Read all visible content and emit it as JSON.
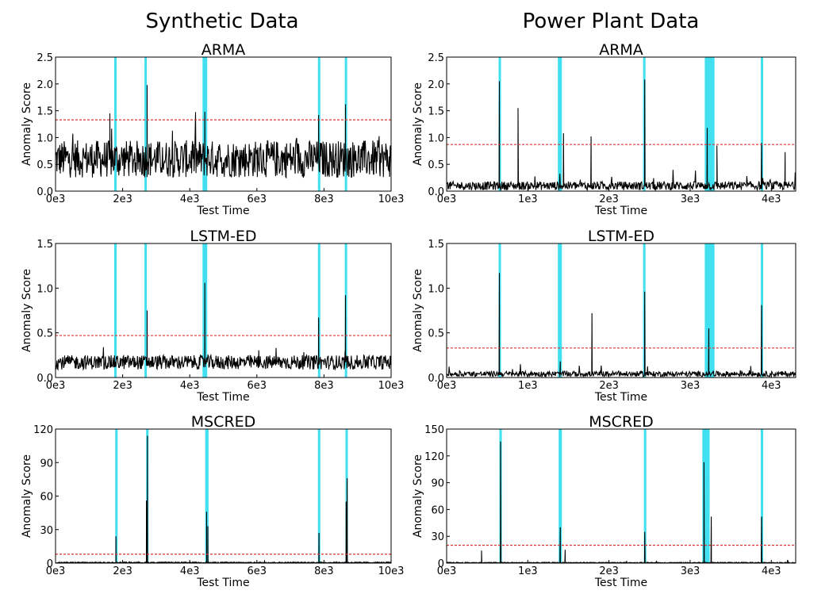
{
  "figure": {
    "column_titles": [
      "Synthetic Data",
      "Power Plant Data"
    ]
  },
  "chart_data": [
    {
      "type": "line",
      "column": "Synthetic Data",
      "title": "ARMA",
      "xlabel": "Test Time",
      "ylabel": "Anomaly Score",
      "xlim": [
        0,
        10000
      ],
      "ylim": [
        0,
        2.5
      ],
      "xticks": [
        0,
        2000,
        4000,
        6000,
        8000,
        10000
      ],
      "xtick_labels": [
        "0e3",
        "2e3",
        "4e3",
        "6e3",
        "8e3",
        "10e3"
      ],
      "yticks": [
        0,
        0.5,
        1.0,
        1.5,
        2.0,
        2.5
      ],
      "ytick_labels": [
        "0.0",
        "0.5",
        "1.0",
        "1.5",
        "2.0",
        "2.5"
      ],
      "threshold": 1.33,
      "anomaly_regions": [
        [
          1750,
          1800
        ],
        [
          2650,
          2720
        ],
        [
          4380,
          4520
        ],
        [
          7820,
          7870
        ],
        [
          8620,
          8680
        ]
      ],
      "noise": {
        "base": 0.6,
        "amp": 0.35,
        "spike_prob": 0.03,
        "spike_amp": 0.6
      },
      "peaks": [
        {
          "x": 2730,
          "y": 1.98
        },
        {
          "x": 4450,
          "y": 1.48
        },
        {
          "x": 7840,
          "y": 1.42
        },
        {
          "x": 8640,
          "y": 1.62
        },
        {
          "x": 1620,
          "y": 1.45
        }
      ],
      "highlight_color": "#40e0f0",
      "threshold_color": "#e03030",
      "line_color": "#000000"
    },
    {
      "type": "line",
      "column": "Power Plant Data",
      "title": "ARMA",
      "xlabel": "Test Time",
      "ylabel": "Anomaly Score",
      "xlim": [
        0,
        4300
      ],
      "ylim": [
        0,
        2.5
      ],
      "xticks": [
        0,
        1000,
        2000,
        3000,
        4000
      ],
      "xtick_labels": [
        "0e3",
        "1e3",
        "2e3",
        "3e3",
        "4e3"
      ],
      "yticks": [
        0,
        0.5,
        1.0,
        1.5,
        2.0,
        2.5
      ],
      "ytick_labels": [
        "0.0",
        "0.5",
        "1.0",
        "1.5",
        "2.0",
        "2.5"
      ],
      "threshold": 0.87,
      "anomaly_regions": [
        [
          640,
          670
        ],
        [
          1370,
          1420
        ],
        [
          2420,
          2450
        ],
        [
          3180,
          3300
        ],
        [
          3870,
          3890
        ]
      ],
      "noise": {
        "base": 0.1,
        "amp": 0.08,
        "spike_prob": 0.02,
        "spike_amp": 0.3
      },
      "peaks": [
        {
          "x": 650,
          "y": 2.05
        },
        {
          "x": 880,
          "y": 1.55
        },
        {
          "x": 1440,
          "y": 1.08
        },
        {
          "x": 1780,
          "y": 1.02
        },
        {
          "x": 2440,
          "y": 2.08
        },
        {
          "x": 3210,
          "y": 1.18
        },
        {
          "x": 3330,
          "y": 0.85
        },
        {
          "x": 3880,
          "y": 0.9
        },
        {
          "x": 4170,
          "y": 0.73
        }
      ],
      "highlight_color": "#40e0f0",
      "threshold_color": "#e03030",
      "line_color": "#000000"
    },
    {
      "type": "line",
      "column": "Synthetic Data",
      "title": "LSTM-ED",
      "xlabel": "Test Time",
      "ylabel": "Anomaly Score",
      "xlim": [
        0,
        10000
      ],
      "ylim": [
        0,
        1.5
      ],
      "xticks": [
        0,
        2000,
        4000,
        6000,
        8000,
        10000
      ],
      "xtick_labels": [
        "0e3",
        "2e3",
        "4e3",
        "6e3",
        "8e3",
        "10e3"
      ],
      "yticks": [
        0,
        0.5,
        1.0,
        1.5
      ],
      "ytick_labels": [
        "0.0",
        "0.5",
        "1.0",
        "1.5"
      ],
      "threshold": 0.47,
      "anomaly_regions": [
        [
          1750,
          1800
        ],
        [
          2650,
          2720
        ],
        [
          4380,
          4520
        ],
        [
          7820,
          7870
        ],
        [
          8620,
          8680
        ]
      ],
      "noise": {
        "base": 0.17,
        "amp": 0.08,
        "spike_prob": 0.02,
        "spike_amp": 0.15
      },
      "peaks": [
        {
          "x": 2730,
          "y": 0.75
        },
        {
          "x": 4450,
          "y": 1.06
        },
        {
          "x": 7840,
          "y": 0.67
        },
        {
          "x": 8640,
          "y": 0.92
        }
      ],
      "highlight_color": "#40e0f0",
      "threshold_color": "#e03030",
      "line_color": "#000000"
    },
    {
      "type": "line",
      "column": "Power Plant Data",
      "title": "LSTM-ED",
      "xlabel": "Test Time",
      "ylabel": "Anomaly Score",
      "xlim": [
        0,
        4300
      ],
      "ylim": [
        0,
        1.5
      ],
      "xticks": [
        0,
        1000,
        2000,
        3000,
        4000
      ],
      "xtick_labels": [
        "0e3",
        "1e3",
        "2e3",
        "3e3",
        "4e3"
      ],
      "yticks": [
        0,
        0.5,
        1.0,
        1.5
      ],
      "ytick_labels": [
        "0.0",
        "0.5",
        "1.0",
        "1.5"
      ],
      "threshold": 0.33,
      "anomaly_regions": [
        [
          640,
          670
        ],
        [
          1370,
          1420
        ],
        [
          2420,
          2450
        ],
        [
          3180,
          3300
        ],
        [
          3870,
          3890
        ]
      ],
      "noise": {
        "base": 0.04,
        "amp": 0.03,
        "spike_prob": 0.015,
        "spike_amp": 0.1
      },
      "peaks": [
        {
          "x": 650,
          "y": 1.17
        },
        {
          "x": 1400,
          "y": 0.18
        },
        {
          "x": 1790,
          "y": 0.72
        },
        {
          "x": 2440,
          "y": 0.96
        },
        {
          "x": 3230,
          "y": 0.55
        },
        {
          "x": 3880,
          "y": 0.81
        }
      ],
      "highlight_color": "#40e0f0",
      "threshold_color": "#e03030",
      "line_color": "#000000"
    },
    {
      "type": "line",
      "column": "Synthetic Data",
      "title": "MSCRED",
      "xlabel": "Test Time",
      "ylabel": "Anomaly Score",
      "xlim": [
        0,
        10000
      ],
      "ylim": [
        0,
        120
      ],
      "xticks": [
        0,
        2000,
        4000,
        6000,
        8000,
        10000
      ],
      "xtick_labels": [
        "0e3",
        "2e3",
        "4e3",
        "6e3",
        "8e3",
        "10e3"
      ],
      "yticks": [
        0,
        30,
        60,
        90,
        120
      ],
      "ytick_labels": [
        "0",
        "30",
        "60",
        "90",
        "120"
      ],
      "threshold": 8,
      "anomaly_regions": [
        [
          1780,
          1830
        ],
        [
          2700,
          2770
        ],
        [
          4460,
          4560
        ],
        [
          7820,
          7870
        ],
        [
          8640,
          8700
        ]
      ],
      "noise": {
        "base": 0.5,
        "amp": 0.5,
        "spike_prob": 0.005,
        "spike_amp": 2
      },
      "peaks": [
        {
          "x": 1800,
          "y": 24
        },
        {
          "x": 2710,
          "y": 56
        },
        {
          "x": 2740,
          "y": 114
        },
        {
          "x": 4500,
          "y": 46
        },
        {
          "x": 4540,
          "y": 33
        },
        {
          "x": 7850,
          "y": 27
        },
        {
          "x": 8660,
          "y": 55
        },
        {
          "x": 8690,
          "y": 76
        }
      ],
      "highlight_color": "#40e0f0",
      "threshold_color": "#e03030",
      "line_color": "#000000"
    },
    {
      "type": "line",
      "column": "Power Plant Data",
      "title": "MSCRED",
      "xlabel": "Test Time",
      "ylabel": "Anomaly Score",
      "xlim": [
        0,
        4300
      ],
      "ylim": [
        0,
        150
      ],
      "xticks": [
        0,
        1000,
        2000,
        3000,
        4000
      ],
      "xtick_labels": [
        "0e3",
        "1e3",
        "2e3",
        "3e3",
        "4e3"
      ],
      "yticks": [
        0,
        30,
        60,
        90,
        120,
        150
      ],
      "ytick_labels": [
        "0",
        "30",
        "60",
        "90",
        "120",
        "150"
      ],
      "threshold": 20,
      "anomaly_regions": [
        [
          650,
          680
        ],
        [
          1380,
          1420
        ],
        [
          2430,
          2460
        ],
        [
          3150,
          3240
        ],
        [
          3870,
          3900
        ]
      ],
      "noise": {
        "base": 0.5,
        "amp": 0.5,
        "spike_prob": 0.004,
        "spike_amp": 3
      },
      "peaks": [
        {
          "x": 665,
          "y": 136
        },
        {
          "x": 1400,
          "y": 40
        },
        {
          "x": 1460,
          "y": 15
        },
        {
          "x": 2440,
          "y": 35
        },
        {
          "x": 3170,
          "y": 113
        },
        {
          "x": 3260,
          "y": 52
        },
        {
          "x": 3880,
          "y": 52
        },
        {
          "x": 430,
          "y": 14
        }
      ],
      "highlight_color": "#40e0f0",
      "threshold_color": "#e03030",
      "line_color": "#000000"
    }
  ]
}
